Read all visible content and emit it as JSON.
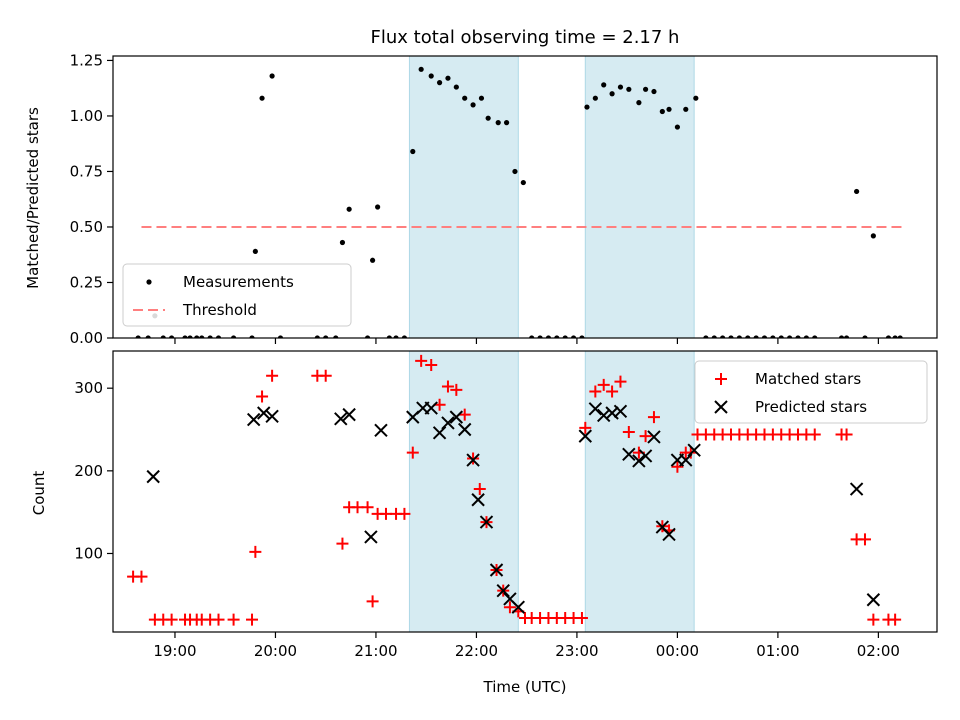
{
  "chart_data": [
    {
      "type": "scatter",
      "title": "Flux total observing time = 2.17 h",
      "ylabel": "Matched/Predicted stars",
      "xlabel": "",
      "xlim": [
        "18:23",
        "02:35"
      ],
      "ylim": [
        0,
        1.27
      ],
      "yticks": [
        "0.00",
        "0.25",
        "0.50",
        "0.75",
        "1.00",
        "1.25"
      ],
      "xticks": [
        "19:00",
        "20:00",
        "21:00",
        "22:00",
        "23:00",
        "00:00",
        "01:00",
        "02:00"
      ],
      "show_xtick_labels": false,
      "legend": {
        "placement": "lower-left",
        "entries": [
          "Measurements",
          "Threshold"
        ]
      },
      "shaded_intervals": [
        [
          "21:20",
          "22:25"
        ],
        [
          "23:05",
          "00:10"
        ]
      ],
      "threshold": {
        "name": "Threshold",
        "y": 0.5,
        "x_start": "18:40",
        "x_end": "02:15",
        "color": "#ff7f7f"
      },
      "series": [
        {
          "name": "Measurements",
          "color": "#000000",
          "points": [
            [
              "18:38",
              0
            ],
            [
              "18:44",
              0
            ],
            [
              "18:48",
              0.1
            ],
            [
              "18:53",
              0
            ],
            [
              "18:58",
              0
            ],
            [
              "19:06",
              0
            ],
            [
              "19:09",
              0
            ],
            [
              "19:13",
              0
            ],
            [
              "19:16",
              0
            ],
            [
              "19:21",
              0
            ],
            [
              "19:26",
              0
            ],
            [
              "19:35",
              0
            ],
            [
              "19:46",
              0
            ],
            [
              "19:48",
              0.39
            ],
            [
              "19:52",
              1.08
            ],
            [
              "19:58",
              1.18
            ],
            [
              "20:03",
              0
            ],
            [
              "20:25",
              0
            ],
            [
              "20:30",
              0
            ],
            [
              "20:36",
              0
            ],
            [
              "20:40",
              0.43
            ],
            [
              "20:44",
              0.58
            ],
            [
              "20:55",
              0
            ],
            [
              "20:58",
              0.35
            ],
            [
              "21:01",
              0.59
            ],
            [
              "21:08",
              0
            ],
            [
              "21:12",
              0
            ],
            [
              "21:17",
              0
            ],
            [
              "21:22",
              0.84
            ],
            [
              "21:27",
              1.21
            ],
            [
              "21:33",
              1.18
            ],
            [
              "21:38",
              1.15
            ],
            [
              "21:43",
              1.17
            ],
            [
              "21:48",
              1.13
            ],
            [
              "21:53",
              1.08
            ],
            [
              "21:58",
              1.05
            ],
            [
              "22:03",
              1.08
            ],
            [
              "22:07",
              0.99
            ],
            [
              "22:13",
              0.97
            ],
            [
              "22:18",
              0.97
            ],
            [
              "22:23",
              0.75
            ],
            [
              "22:28",
              0.7
            ],
            [
              "22:33",
              0
            ],
            [
              "22:38",
              0
            ],
            [
              "22:43",
              0
            ],
            [
              "22:48",
              0
            ],
            [
              "22:53",
              0
            ],
            [
              "22:58",
              0
            ],
            [
              "23:03",
              0
            ],
            [
              "23:06",
              1.04
            ],
            [
              "23:11",
              1.08
            ],
            [
              "23:16",
              1.14
            ],
            [
              "23:21",
              1.1
            ],
            [
              "23:26",
              1.13
            ],
            [
              "23:31",
              1.12
            ],
            [
              "23:37",
              1.06
            ],
            [
              "23:41",
              1.12
            ],
            [
              "23:46",
              1.11
            ],
            [
              "23:51",
              1.02
            ],
            [
              "23:55",
              1.03
            ],
            [
              "00:00",
              0.95
            ],
            [
              "00:05",
              1.03
            ],
            [
              "00:11",
              1.08
            ],
            [
              "00:17",
              0
            ],
            [
              "00:22",
              0
            ],
            [
              "00:27",
              0
            ],
            [
              "00:32",
              0
            ],
            [
              "00:37",
              0
            ],
            [
              "00:42",
              0
            ],
            [
              "00:47",
              0
            ],
            [
              "00:52",
              0
            ],
            [
              "00:57",
              0
            ],
            [
              "01:02",
              0
            ],
            [
              "01:07",
              0
            ],
            [
              "01:12",
              0
            ],
            [
              "01:17",
              0
            ],
            [
              "01:22",
              0
            ],
            [
              "01:38",
              0
            ],
            [
              "01:41",
              0
            ],
            [
              "01:47",
              0.66
            ],
            [
              "01:52",
              0
            ],
            [
              "01:57",
              0.46
            ],
            [
              "02:06",
              0
            ],
            [
              "02:10",
              0
            ],
            [
              "02:13",
              0
            ]
          ]
        }
      ]
    },
    {
      "type": "scatter",
      "title": "",
      "ylabel": "Count",
      "xlabel": "Time (UTC)",
      "xlim": [
        "18:23",
        "02:35"
      ],
      "ylim": [
        5,
        345
      ],
      "yticks": [
        "100",
        "200",
        "300"
      ],
      "xticks": [
        "19:00",
        "20:00",
        "21:00",
        "22:00",
        "23:00",
        "00:00",
        "01:00",
        "02:00"
      ],
      "show_xtick_labels": true,
      "legend": {
        "placement": "upper-right",
        "entries": [
          "Matched stars",
          "Predicted stars"
        ]
      },
      "shaded_intervals": [
        [
          "21:20",
          "22:25"
        ],
        [
          "23:05",
          "00:10"
        ]
      ],
      "series": [
        {
          "name": "Matched stars",
          "marker": "plus",
          "color": "#ff0000",
          "points": [
            [
              "18:35",
              72
            ],
            [
              "18:40",
              72
            ],
            [
              "18:48",
              20
            ],
            [
              "18:53",
              20
            ],
            [
              "18:58",
              20
            ],
            [
              "19:06",
              20
            ],
            [
              "19:09",
              20
            ],
            [
              "19:13",
              20
            ],
            [
              "19:16",
              20
            ],
            [
              "19:21",
              20
            ],
            [
              "19:26",
              20
            ],
            [
              "19:35",
              20
            ],
            [
              "19:46",
              20
            ],
            [
              "19:48",
              102
            ],
            [
              "19:52",
              290
            ],
            [
              "19:58",
              315
            ],
            [
              "20:25",
              315
            ],
            [
              "20:30",
              315
            ],
            [
              "20:40",
              112
            ],
            [
              "20:44",
              156
            ],
            [
              "20:49",
              156
            ],
            [
              "20:55",
              156
            ],
            [
              "20:58",
              42
            ],
            [
              "21:01",
              148
            ],
            [
              "21:06",
              148
            ],
            [
              "21:12",
              148
            ],
            [
              "21:17",
              148
            ],
            [
              "21:22",
              222
            ],
            [
              "21:27",
              333
            ],
            [
              "21:33",
              328
            ],
            [
              "21:38",
              280
            ],
            [
              "21:43",
              302
            ],
            [
              "21:48",
              298
            ],
            [
              "21:53",
              268
            ],
            [
              "21:58",
              215
            ],
            [
              "22:02",
              178
            ],
            [
              "22:06",
              138
            ],
            [
              "22:12",
              80
            ],
            [
              "22:16",
              55
            ],
            [
              "22:20",
              35
            ],
            [
              "22:25",
              30
            ],
            [
              "22:29",
              22
            ],
            [
              "22:33",
              22
            ],
            [
              "22:38",
              22
            ],
            [
              "22:43",
              22
            ],
            [
              "22:48",
              22
            ],
            [
              "22:53",
              22
            ],
            [
              "22:58",
              22
            ],
            [
              "23:03",
              22
            ],
            [
              "23:05",
              252
            ],
            [
              "23:11",
              296
            ],
            [
              "23:16",
              304
            ],
            [
              "23:21",
              296
            ],
            [
              "23:26",
              308
            ],
            [
              "23:31",
              247
            ],
            [
              "23:37",
              222
            ],
            [
              "23:41",
              242
            ],
            [
              "23:46",
              265
            ],
            [
              "23:51",
              133
            ],
            [
              "23:55",
              128
            ],
            [
              "00:00",
              205
            ],
            [
              "00:05",
              222
            ],
            [
              "00:08",
              222
            ],
            [
              "00:12",
              244
            ],
            [
              "00:17",
              244
            ],
            [
              "00:22",
              244
            ],
            [
              "00:27",
              244
            ],
            [
              "00:32",
              244
            ],
            [
              "00:37",
              244
            ],
            [
              "00:42",
              244
            ],
            [
              "00:47",
              244
            ],
            [
              "00:52",
              244
            ],
            [
              "00:57",
              244
            ],
            [
              "01:02",
              244
            ],
            [
              "01:07",
              244
            ],
            [
              "01:12",
              244
            ],
            [
              "01:17",
              244
            ],
            [
              "01:22",
              244
            ],
            [
              "01:38",
              244
            ],
            [
              "01:41",
              244
            ],
            [
              "01:47",
              117
            ],
            [
              "01:52",
              117
            ],
            [
              "01:57",
              20
            ],
            [
              "02:06",
              20
            ],
            [
              "02:10",
              20
            ]
          ]
        },
        {
          "name": "Predicted stars",
          "marker": "x",
          "color": "#000000",
          "points": [
            [
              "18:47",
              193
            ],
            [
              "19:47",
              262
            ],
            [
              "19:53",
              270
            ],
            [
              "19:58",
              266
            ],
            [
              "20:39",
              263
            ],
            [
              "20:44",
              268
            ],
            [
              "20:57",
              120
            ],
            [
              "21:03",
              249
            ],
            [
              "21:22",
              265
            ],
            [
              "21:28",
              276
            ],
            [
              "21:33",
              276
            ],
            [
              "21:38",
              246
            ],
            [
              "21:43",
              258
            ],
            [
              "21:48",
              265
            ],
            [
              "21:53",
              250
            ],
            [
              "21:58",
              213
            ],
            [
              "22:01",
              165
            ],
            [
              "22:06",
              138
            ],
            [
              "22:12",
              80
            ],
            [
              "22:16",
              55
            ],
            [
              "22:20",
              45
            ],
            [
              "22:25",
              35
            ],
            [
              "23:05",
              242
            ],
            [
              "23:11",
              275
            ],
            [
              "23:16",
              267
            ],
            [
              "23:21",
              270
            ],
            [
              "23:26",
              272
            ],
            [
              "23:31",
              220
            ],
            [
              "23:37",
              212
            ],
            [
              "23:41",
              218
            ],
            [
              "23:46",
              241
            ],
            [
              "23:51",
              132
            ],
            [
              "23:55",
              123
            ],
            [
              "00:00",
              213
            ],
            [
              "00:05",
              213
            ],
            [
              "00:10",
              225
            ],
            [
              "01:47",
              178
            ],
            [
              "01:57",
              44
            ]
          ]
        }
      ]
    }
  ]
}
